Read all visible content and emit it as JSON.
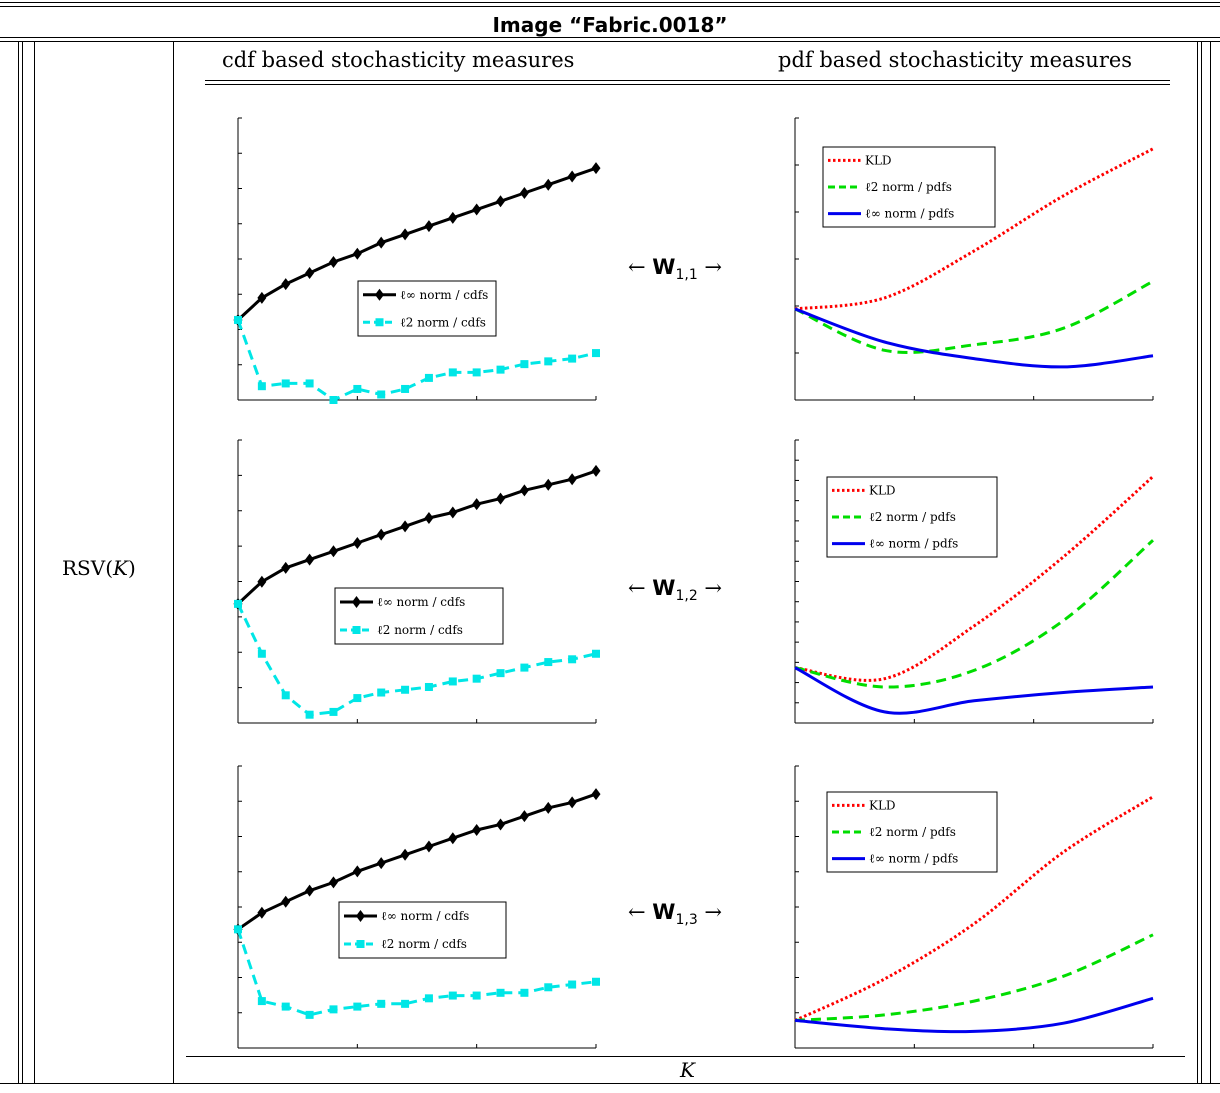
{
  "title": "Image “Fabric.0018”",
  "header": {
    "left": "cdf based stochasticity measures",
    "right": "pdf based stochasticity measures"
  },
  "row_label": "RSV(K)",
  "x_label": "K",
  "operators": [
    {
      "pre": "←",
      "w": "W",
      "sub": "1,1",
      "post": "→"
    },
    {
      "pre": "←",
      "w": "W",
      "sub": "1,2",
      "post": "→"
    },
    {
      "pre": "←",
      "w": "W",
      "sub": "1,3",
      "post": "→"
    }
  ],
  "chart_data": [
    {
      "type": "line",
      "ylim": [
        0,
        1
      ],
      "legend_position": "center",
      "series": [
        {
          "name": "ℓ∞ norm / cdfs",
          "color": "#000000",
          "marker": "diamond",
          "x": [
            1,
            2,
            3,
            4,
            5,
            6,
            7,
            8,
            9,
            10,
            11,
            12,
            13,
            14,
            15,
            16
          ],
          "y": [
            0.29,
            0.37,
            0.42,
            0.46,
            0.5,
            0.53,
            0.57,
            0.6,
            0.63,
            0.66,
            0.69,
            0.72,
            0.75,
            0.78,
            0.81,
            0.84
          ]
        },
        {
          "name": "ℓ2 norm / cdfs",
          "color": "#00e6e6",
          "marker": "square",
          "x": [
            1,
            2,
            3,
            4,
            5,
            6,
            7,
            8,
            9,
            10,
            11,
            12,
            13,
            14,
            15,
            16
          ],
          "y": [
            0.29,
            0.05,
            0.06,
            0.06,
            0.0,
            0.04,
            0.02,
            0.04,
            0.08,
            0.1,
            0.1,
            0.11,
            0.13,
            0.14,
            0.15,
            0.17
          ]
        }
      ]
    },
    {
      "type": "line",
      "ylim": [
        0,
        1
      ],
      "legend_position": "top-left",
      "series": [
        {
          "name": "KLD",
          "color": "#ff0000",
          "style": "dotted",
          "x": [
            0,
            0.25,
            0.5,
            0.75,
            1
          ],
          "y": [
            0.33,
            0.37,
            0.54,
            0.74,
            0.91
          ]
        },
        {
          "name": "ℓ2 norm / pdfs",
          "color": "#00dd00",
          "style": "dashed",
          "x": [
            0,
            0.25,
            0.5,
            0.75,
            1
          ],
          "y": [
            0.33,
            0.18,
            0.2,
            0.26,
            0.43
          ]
        },
        {
          "name": "ℓ∞ norm / pdfs",
          "color": "#0000ee",
          "style": "solid",
          "x": [
            0,
            0.25,
            0.5,
            0.75,
            1
          ],
          "y": [
            0.33,
            0.21,
            0.15,
            0.12,
            0.16
          ]
        }
      ]
    },
    {
      "type": "line",
      "ylim": [
        0,
        1
      ],
      "legend_position": "center",
      "series": [
        {
          "name": "ℓ∞ norm / cdfs",
          "color": "#000000",
          "marker": "diamond",
          "x": [
            1,
            2,
            3,
            4,
            5,
            6,
            7,
            8,
            9,
            10,
            11,
            12,
            13,
            14,
            15,
            16
          ],
          "y": [
            0.43,
            0.51,
            0.56,
            0.59,
            0.62,
            0.65,
            0.68,
            0.71,
            0.74,
            0.76,
            0.79,
            0.81,
            0.84,
            0.86,
            0.88,
            0.91
          ]
        },
        {
          "name": "ℓ2 norm / cdfs",
          "color": "#00e6e6",
          "marker": "square",
          "x": [
            1,
            2,
            3,
            4,
            5,
            6,
            7,
            8,
            9,
            10,
            11,
            12,
            13,
            14,
            15,
            16
          ],
          "y": [
            0.43,
            0.25,
            0.1,
            0.03,
            0.04,
            0.09,
            0.11,
            0.12,
            0.13,
            0.15,
            0.16,
            0.18,
            0.2,
            0.22,
            0.23,
            0.25
          ]
        }
      ]
    },
    {
      "type": "line",
      "ylim": [
        0,
        1
      ],
      "legend_position": "top-left",
      "series": [
        {
          "name": "KLD",
          "color": "#ff0000",
          "style": "dotted",
          "x": [
            0,
            0.25,
            0.5,
            0.75,
            1
          ],
          "y": [
            0.2,
            0.16,
            0.35,
            0.6,
            0.89
          ]
        },
        {
          "name": "ℓ2 norm / pdfs",
          "color": "#00dd00",
          "style": "dashed",
          "x": [
            0,
            0.25,
            0.5,
            0.75,
            1
          ],
          "y": [
            0.2,
            0.13,
            0.19,
            0.37,
            0.66
          ]
        },
        {
          "name": "ℓ∞ norm / pdfs",
          "color": "#0000ee",
          "style": "solid",
          "x": [
            0,
            0.25,
            0.5,
            0.75,
            1
          ],
          "y": [
            0.2,
            0.04,
            0.08,
            0.11,
            0.13
          ]
        }
      ]
    },
    {
      "type": "line",
      "ylim": [
        0,
        1
      ],
      "legend_position": "center",
      "series": [
        {
          "name": "ℓ∞ norm / cdfs",
          "color": "#000000",
          "marker": "diamond",
          "x": [
            1,
            2,
            3,
            4,
            5,
            6,
            7,
            8,
            9,
            10,
            11,
            12,
            13,
            14,
            15,
            16
          ],
          "y": [
            0.43,
            0.49,
            0.53,
            0.57,
            0.6,
            0.64,
            0.67,
            0.7,
            0.73,
            0.76,
            0.79,
            0.81,
            0.84,
            0.87,
            0.89,
            0.92
          ]
        },
        {
          "name": "ℓ2 norm / cdfs",
          "color": "#00e6e6",
          "marker": "square",
          "x": [
            1,
            2,
            3,
            4,
            5,
            6,
            7,
            8,
            9,
            10,
            11,
            12,
            13,
            14,
            15,
            16
          ],
          "y": [
            0.43,
            0.17,
            0.15,
            0.12,
            0.14,
            0.15,
            0.16,
            0.16,
            0.18,
            0.19,
            0.19,
            0.2,
            0.2,
            0.22,
            0.23,
            0.24
          ]
        }
      ]
    },
    {
      "type": "line",
      "ylim": [
        0,
        1
      ],
      "legend_position": "top-left",
      "series": [
        {
          "name": "KLD",
          "color": "#ff0000",
          "style": "dotted",
          "x": [
            0,
            0.25,
            0.5,
            0.75,
            1
          ],
          "y": [
            0.1,
            0.25,
            0.45,
            0.71,
            0.91
          ]
        },
        {
          "name": "ℓ2 norm / pdfs",
          "color": "#00dd00",
          "style": "dashed",
          "x": [
            0,
            0.25,
            0.5,
            0.75,
            1
          ],
          "y": [
            0.1,
            0.12,
            0.17,
            0.26,
            0.41
          ]
        },
        {
          "name": "ℓ∞ norm / pdfs",
          "color": "#0000ee",
          "style": "solid",
          "x": [
            0,
            0.25,
            0.5,
            0.75,
            1
          ],
          "y": [
            0.1,
            0.07,
            0.06,
            0.09,
            0.18
          ]
        }
      ]
    }
  ]
}
